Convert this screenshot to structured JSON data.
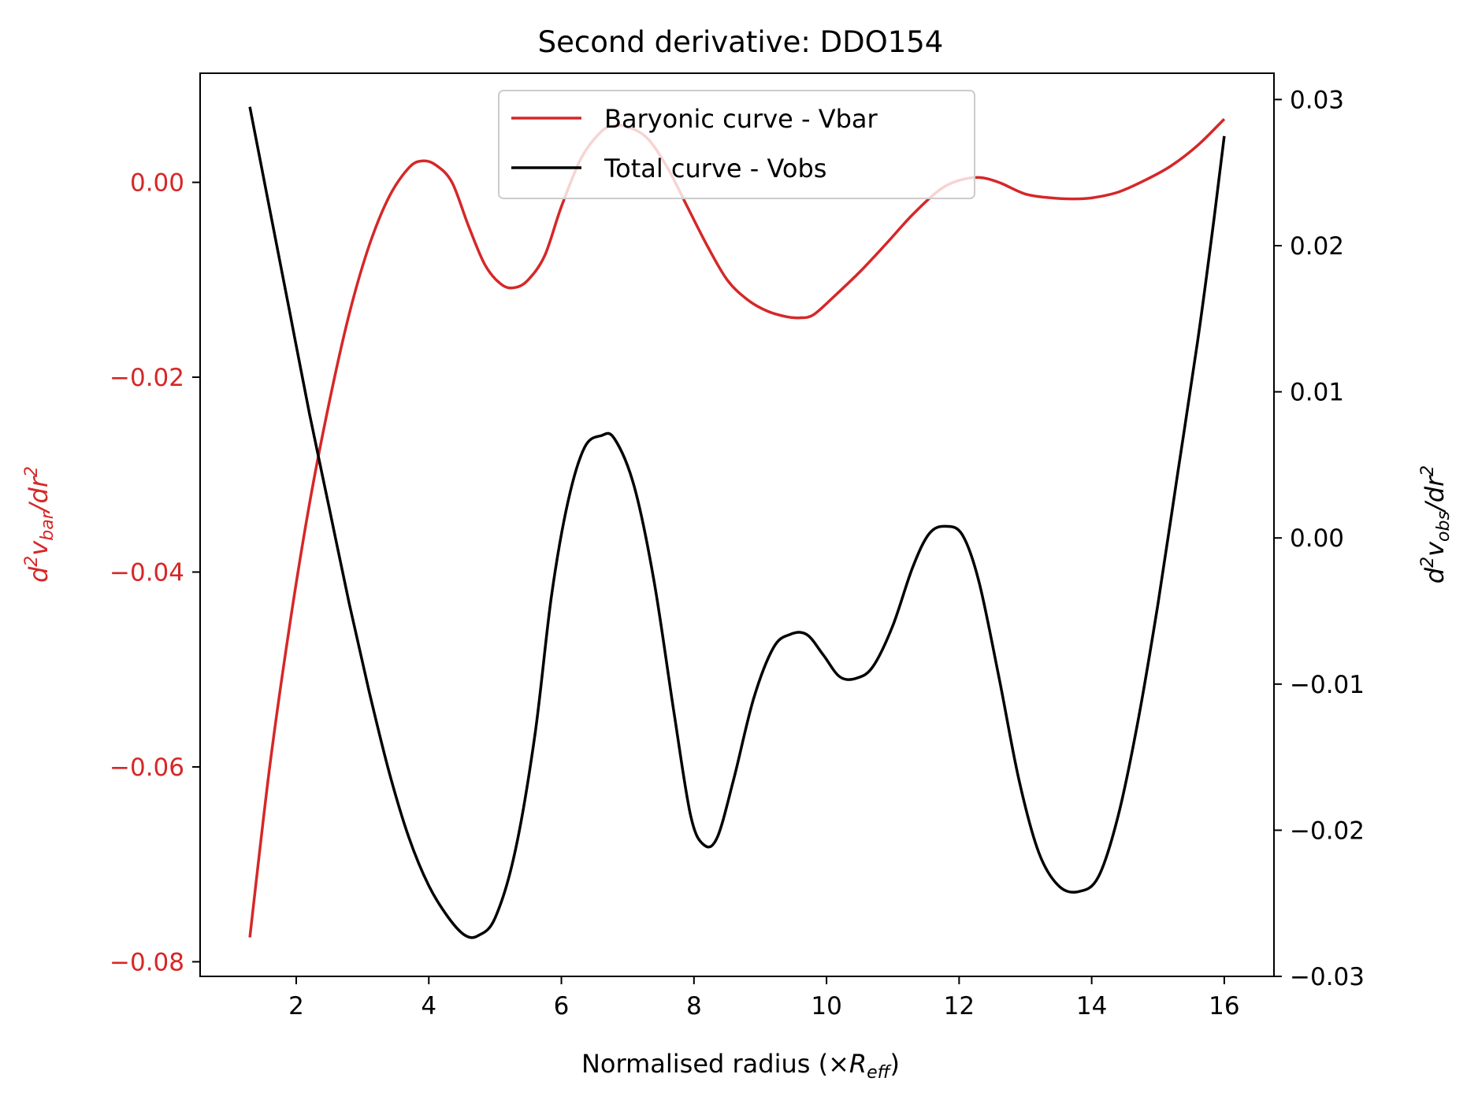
{
  "chart_data": {
    "type": "line",
    "title": "Second derivative: DDO154",
    "xlabel": {
      "text": "Normalised radius (×",
      "sym": "R",
      "sub": "eff",
      "close": ")"
    },
    "ylabel_left": {
      "pre": "d",
      "sup1": "2",
      "v": "v",
      "sub": "bar",
      "post": "/dr",
      "sup2": "2"
    },
    "ylabel_right": {
      "pre": "d",
      "sup1": "2",
      "v": "v",
      "sub": "obs",
      "post": "/dr",
      "sup2": "2"
    },
    "xlim": [
      0.55,
      16.75
    ],
    "ylim_left": [
      -0.0815,
      0.0112
    ],
    "ylim_right": [
      -0.03,
      0.0318
    ],
    "xticks": [
      "2",
      "4",
      "6",
      "8",
      "10",
      "12",
      "14",
      "16"
    ],
    "yticks_left": [
      "0.00",
      "−0.02",
      "−0.04",
      "−0.06",
      "−0.08"
    ],
    "yticks_right": [
      "0.03",
      "0.02",
      "0.01",
      "0.00",
      "−0.01",
      "−0.02",
      "−0.03"
    ],
    "grid": false,
    "legend_position": "top-center",
    "colors": {
      "left_axis": "#d62728",
      "vbar": "#d62728",
      "vobs": "#000000"
    },
    "series": [
      {
        "name": "Baryonic curve - Vbar",
        "axis": "left",
        "color": "#d62728",
        "points": [
          [
            1.3,
            -0.0775
          ],
          [
            1.6,
            -0.06
          ],
          [
            1.9,
            -0.0455
          ],
          [
            2.2,
            -0.033
          ],
          [
            2.5,
            -0.0225
          ],
          [
            2.8,
            -0.0135
          ],
          [
            3.1,
            -0.0065
          ],
          [
            3.4,
            -0.0015
          ],
          [
            3.7,
            0.0015
          ],
          [
            3.9,
            0.0022
          ],
          [
            4.1,
            0.0018
          ],
          [
            4.35,
            0.0
          ],
          [
            4.6,
            -0.0045
          ],
          [
            4.85,
            -0.0085
          ],
          [
            5.1,
            -0.0105
          ],
          [
            5.3,
            -0.0108
          ],
          [
            5.5,
            -0.01
          ],
          [
            5.75,
            -0.0075
          ],
          [
            6.0,
            -0.0025
          ],
          [
            6.3,
            0.0025
          ],
          [
            6.6,
            0.0052
          ],
          [
            6.8,
            0.0058
          ],
          [
            7.0,
            0.0057
          ],
          [
            7.3,
            0.0045
          ],
          [
            7.6,
            0.0015
          ],
          [
            7.9,
            -0.0025
          ],
          [
            8.2,
            -0.0065
          ],
          [
            8.5,
            -0.01
          ],
          [
            8.8,
            -0.012
          ],
          [
            9.1,
            -0.0132
          ],
          [
            9.4,
            -0.0138
          ],
          [
            9.6,
            -0.0139
          ],
          [
            9.8,
            -0.0136
          ],
          [
            10.1,
            -0.0118
          ],
          [
            10.5,
            -0.0092
          ],
          [
            10.9,
            -0.0063
          ],
          [
            11.3,
            -0.0033
          ],
          [
            11.7,
            -0.0008
          ],
          [
            12.0,
            0.0002
          ],
          [
            12.3,
            0.0005
          ],
          [
            12.6,
            0.0
          ],
          [
            13.0,
            -0.0012
          ],
          [
            13.4,
            -0.0016
          ],
          [
            13.7,
            -0.0017
          ],
          [
            14.0,
            -0.0016
          ],
          [
            14.4,
            -0.001
          ],
          [
            14.8,
            0.0002
          ],
          [
            15.2,
            0.0017
          ],
          [
            15.6,
            0.0038
          ],
          [
            16.0,
            0.0065
          ]
        ]
      },
      {
        "name": "Total curve - Vobs",
        "axis": "right",
        "color": "#000000",
        "points": [
          [
            1.3,
            0.0295
          ],
          [
            1.6,
            0.0225
          ],
          [
            1.9,
            0.0155
          ],
          [
            2.2,
            0.0085
          ],
          [
            2.5,
            0.002
          ],
          [
            2.8,
            -0.0045
          ],
          [
            3.1,
            -0.0105
          ],
          [
            3.4,
            -0.016
          ],
          [
            3.7,
            -0.0205
          ],
          [
            4.0,
            -0.0238
          ],
          [
            4.3,
            -0.026
          ],
          [
            4.55,
            -0.0272
          ],
          [
            4.75,
            -0.0272
          ],
          [
            5.0,
            -0.026
          ],
          [
            5.3,
            -0.0215
          ],
          [
            5.6,
            -0.0135
          ],
          [
            5.85,
            -0.004
          ],
          [
            6.1,
            0.0025
          ],
          [
            6.35,
            0.0062
          ],
          [
            6.6,
            0.007
          ],
          [
            6.8,
            0.0068
          ],
          [
            7.1,
            0.0035
          ],
          [
            7.4,
            -0.003
          ],
          [
            7.7,
            -0.012
          ],
          [
            7.95,
            -0.019
          ],
          [
            8.15,
            -0.021
          ],
          [
            8.35,
            -0.0205
          ],
          [
            8.6,
            -0.0165
          ],
          [
            8.9,
            -0.011
          ],
          [
            9.2,
            -0.0075
          ],
          [
            9.45,
            -0.0066
          ],
          [
            9.7,
            -0.0066
          ],
          [
            9.95,
            -0.008
          ],
          [
            10.2,
            -0.0095
          ],
          [
            10.45,
            -0.0096
          ],
          [
            10.7,
            -0.0088
          ],
          [
            11.0,
            -0.006
          ],
          [
            11.3,
            -0.002
          ],
          [
            11.55,
            0.0003
          ],
          [
            11.8,
            0.0008
          ],
          [
            12.05,
            0.0002
          ],
          [
            12.3,
            -0.003
          ],
          [
            12.6,
            -0.0095
          ],
          [
            12.9,
            -0.0165
          ],
          [
            13.2,
            -0.0215
          ],
          [
            13.5,
            -0.0238
          ],
          [
            13.8,
            -0.0242
          ],
          [
            14.1,
            -0.0232
          ],
          [
            14.4,
            -0.019
          ],
          [
            14.7,
            -0.0125
          ],
          [
            15.0,
            -0.0045
          ],
          [
            15.3,
            0.0045
          ],
          [
            15.6,
            0.0135
          ],
          [
            15.85,
            0.022
          ],
          [
            16.0,
            0.0275
          ]
        ]
      }
    ]
  }
}
